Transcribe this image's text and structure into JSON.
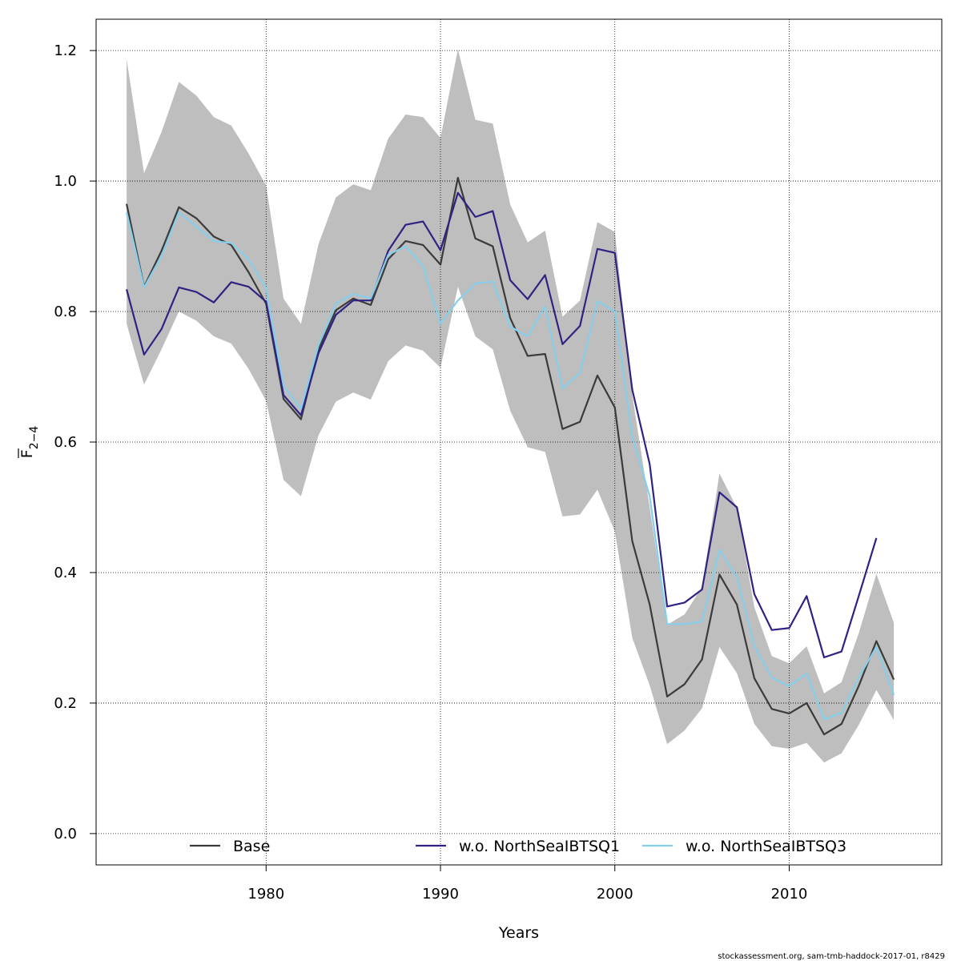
{
  "chart_data": {
    "type": "line",
    "xlabel": "Years",
    "ylabel_main": "F",
    "ylabel_sub": "2−4",
    "xlim": [
      1970.25,
      2018.75
    ],
    "ylim": [
      -0.048,
      1.248
    ],
    "xticks": [
      1980,
      1990,
      2000,
      2010
    ],
    "yticks": [
      0.0,
      0.2,
      0.4,
      0.6,
      0.8,
      1.0,
      1.2
    ],
    "ytick_labels": [
      "0.0",
      "0.2",
      "0.4",
      "0.6",
      "0.8",
      "1.0",
      "1.2"
    ],
    "grid": true,
    "legend_placement": "bottom",
    "band": {
      "x": [
        1972,
        1973,
        1974,
        1975,
        1976,
        1977,
        1978,
        1979,
        1980,
        1981,
        1982,
        1983,
        1984,
        1985,
        1986,
        1987,
        1988,
        1989,
        1990,
        1991,
        1992,
        1993,
        1994,
        1995,
        1996,
        1997,
        1998,
        1999,
        2000,
        2001,
        2002,
        2003,
        2004,
        2005,
        2006,
        2007,
        2008,
        2009,
        2010,
        2011,
        2012,
        2013,
        2014,
        2015,
        2016
      ],
      "upper": [
        1.187,
        1.012,
        1.075,
        1.152,
        1.131,
        1.098,
        1.085,
        1.042,
        0.993,
        0.82,
        0.781,
        0.903,
        0.975,
        0.995,
        0.986,
        1.065,
        1.102,
        1.098,
        1.066,
        1.202,
        1.094,
        1.088,
        0.964,
        0.906,
        0.924,
        0.792,
        0.817,
        0.937,
        0.922,
        0.672,
        0.5,
        0.32,
        0.336,
        0.378,
        0.552,
        0.499,
        0.347,
        0.272,
        0.261,
        0.287,
        0.215,
        0.232,
        0.308,
        0.398,
        0.323
      ],
      "lower": [
        0.781,
        0.688,
        0.742,
        0.8,
        0.786,
        0.762,
        0.751,
        0.712,
        0.663,
        0.542,
        0.517,
        0.61,
        0.662,
        0.676,
        0.665,
        0.724,
        0.748,
        0.74,
        0.714,
        0.838,
        0.762,
        0.742,
        0.648,
        0.592,
        0.585,
        0.486,
        0.489,
        0.527,
        0.463,
        0.3,
        0.227,
        0.137,
        0.158,
        0.192,
        0.286,
        0.246,
        0.168,
        0.134,
        0.13,
        0.139,
        0.109,
        0.123,
        0.167,
        0.22,
        0.174
      ],
      "color": "#bebebe"
    },
    "series": [
      {
        "name": "Base",
        "color": "#3b3b3b",
        "x": [
          1972,
          1973,
          1974,
          1975,
          1976,
          1977,
          1978,
          1979,
          1980,
          1981,
          1982,
          1983,
          1984,
          1985,
          1986,
          1987,
          1988,
          1989,
          1990,
          1991,
          1992,
          1993,
          1994,
          1995,
          1996,
          1997,
          1998,
          1999,
          2000,
          2001,
          2002,
          2003,
          2004,
          2005,
          2006,
          2007,
          2008,
          2009,
          2010,
          2011,
          2012,
          2013,
          2014,
          2015,
          2016
        ],
        "values": [
          0.965,
          0.838,
          0.893,
          0.96,
          0.943,
          0.915,
          0.902,
          0.86,
          0.812,
          0.666,
          0.635,
          0.742,
          0.802,
          0.82,
          0.81,
          0.88,
          0.908,
          0.902,
          0.872,
          1.005,
          0.912,
          0.9,
          0.79,
          0.732,
          0.735,
          0.62,
          0.631,
          0.702,
          0.653,
          0.448,
          0.351,
          0.21,
          0.229,
          0.267,
          0.397,
          0.351,
          0.238,
          0.191,
          0.184,
          0.2,
          0.152,
          0.168,
          0.227,
          0.295,
          0.236
        ]
      },
      {
        "name": "w.o. NorthSeaIBTSQ1",
        "color": "#2e2383",
        "x": [
          1972,
          1973,
          1974,
          1975,
          1976,
          1977,
          1978,
          1979,
          1980,
          1981,
          1982,
          1983,
          1984,
          1985,
          1986,
          1987,
          1988,
          1989,
          1990,
          1991,
          1992,
          1993,
          1994,
          1995,
          1996,
          1997,
          1998,
          1999,
          2000,
          2001,
          2002,
          2003,
          2004,
          2005,
          2006,
          2007,
          2008,
          2009,
          2010,
          2011,
          2012,
          2013,
          2014,
          2015
        ],
        "values": [
          0.834,
          0.734,
          0.773,
          0.837,
          0.83,
          0.814,
          0.845,
          0.838,
          0.815,
          0.672,
          0.641,
          0.736,
          0.795,
          0.817,
          0.817,
          0.893,
          0.933,
          0.938,
          0.894,
          0.982,
          0.945,
          0.954,
          0.848,
          0.819,
          0.856,
          0.75,
          0.778,
          0.896,
          0.89,
          0.68,
          0.566,
          0.348,
          0.354,
          0.374,
          0.523,
          0.5,
          0.367,
          0.312,
          0.315,
          0.364,
          0.27,
          0.279,
          0.365,
          0.453
        ]
      },
      {
        "name": "w.o. NorthSeaIBTSQ3",
        "color": "#87ceeb",
        "x": [
          1972,
          1973,
          1974,
          1975,
          1976,
          1977,
          1978,
          1979,
          1980,
          1981,
          1982,
          1983,
          1984,
          1985,
          1986,
          1987,
          1988,
          1989,
          1990,
          1991,
          1992,
          1993,
          1994,
          1995,
          1996,
          1997,
          1998,
          1999,
          2000,
          2001,
          2002,
          2003,
          2004,
          2005,
          2006,
          2007,
          2008,
          2009,
          2010,
          2011,
          2012,
          2013,
          2014,
          2015,
          2016
        ],
        "values": [
          0.952,
          0.837,
          0.885,
          0.952,
          0.93,
          0.908,
          0.905,
          0.88,
          0.836,
          0.686,
          0.651,
          0.748,
          0.812,
          0.827,
          0.82,
          0.887,
          0.9,
          0.87,
          0.781,
          0.817,
          0.843,
          0.846,
          0.777,
          0.762,
          0.808,
          0.682,
          0.706,
          0.816,
          0.8,
          0.608,
          0.517,
          0.321,
          0.321,
          0.325,
          0.435,
          0.393,
          0.287,
          0.239,
          0.226,
          0.245,
          0.175,
          0.185,
          0.24,
          0.286,
          0.212
        ]
      }
    ]
  },
  "credit": "stockassessment.org, sam-tmb-haddock-2017-01, r8429"
}
